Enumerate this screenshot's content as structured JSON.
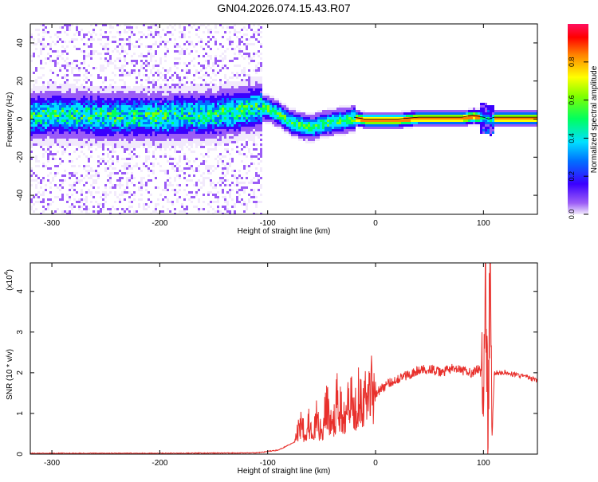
{
  "title": "GN04.2026.074.15.43.R07",
  "chart_data": [
    {
      "type": "heatmap",
      "xlabel": "Height of straight line (km)",
      "ylabel": "Frequency (Hz)",
      "xlim": [
        -320,
        150
      ],
      "ylim": [
        -50,
        50
      ],
      "xticks": [
        -300,
        -200,
        -100,
        0,
        100
      ],
      "yticks": [
        -40,
        -20,
        0,
        20,
        40
      ],
      "trace": {
        "x": [
          -320,
          -300,
          -250,
          -200,
          -150,
          -125,
          -110,
          -100,
          -90,
          -80,
          -70,
          -60,
          -50,
          -40,
          -30,
          -20,
          -10,
          0,
          20,
          40,
          60,
          80,
          90,
          100,
          105,
          110,
          120,
          150
        ],
        "freq": [
          2,
          3,
          2,
          2,
          3,
          5,
          7,
          6,
          3,
          -1,
          -3,
          -4,
          -2,
          -1,
          0,
          1,
          0,
          0,
          0,
          1,
          1,
          1,
          2,
          1,
          0,
          1,
          1,
          1
        ]
      },
      "colorbar": {
        "label": "Normalized spectral amplitude",
        "range": [
          0,
          1
        ],
        "ticks": [
          "0.0",
          "0.2",
          "0.4",
          "0.6",
          "0.8"
        ]
      }
    },
    {
      "type": "line",
      "xlabel": "Height of straight line (km)",
      "ylabel": "SNR (10 * v/v)",
      "y_multiplier": "(x10",
      "y_multiplier_exp": "4",
      "y_multiplier_close": ")",
      "xlim": [
        -320,
        150
      ],
      "ylim": [
        0,
        4.7
      ],
      "xticks": [
        -300,
        -200,
        -100,
        0,
        100
      ],
      "yticks": [
        0,
        1,
        2,
        3,
        4
      ],
      "series": [
        {
          "color": "#e8302c",
          "x": [
            -320,
            -200,
            -110,
            -90,
            -75,
            -68,
            -65,
            -62,
            -58,
            -55,
            -50,
            -45,
            -40,
            -35,
            -30,
            -25,
            -20,
            -15,
            -10,
            -5,
            0,
            5,
            10,
            20,
            30,
            40,
            50,
            60,
            70,
            80,
            90,
            95,
            100,
            102,
            104,
            106,
            108,
            110,
            120,
            130,
            140,
            150
          ],
          "y": [
            0.02,
            0.02,
            0.03,
            0.1,
            0.3,
            0.9,
            0.4,
            0.8,
            0.3,
            0.9,
            0.5,
            1.2,
            0.6,
            1.4,
            0.8,
            1.7,
            1.0,
            1.6,
            1.3,
            1.7,
            1.5,
            1.6,
            1.7,
            1.85,
            1.95,
            2.05,
            2.1,
            2.0,
            2.1,
            2.05,
            2.0,
            2.1,
            1.9,
            4.4,
            0.3,
            4.5,
            0.4,
            2.0,
            2.0,
            1.95,
            1.9,
            1.8
          ]
        }
      ]
    }
  ]
}
